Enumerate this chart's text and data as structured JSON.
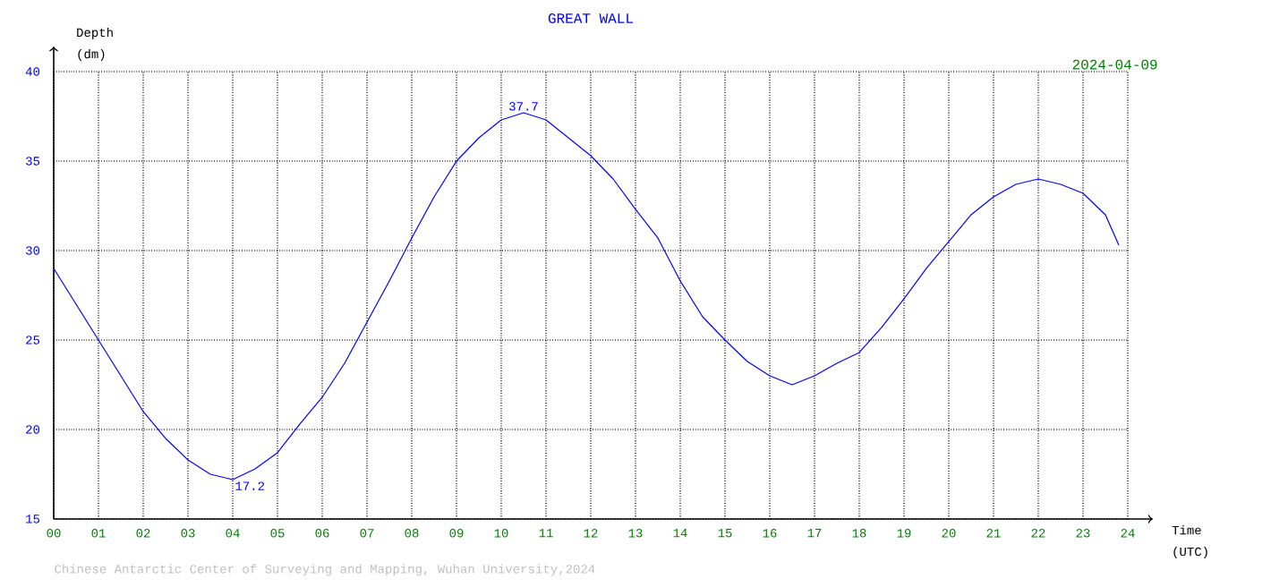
{
  "chart_data": {
    "type": "line",
    "title": "GREAT WALL",
    "xlabel": "Time (UTC)",
    "ylabel": "Depth (dm)",
    "x": [
      0,
      0.5,
      1,
      1.5,
      2,
      2.5,
      3,
      3.5,
      4,
      4.5,
      5,
      5.5,
      6,
      6.5,
      7,
      7.5,
      8,
      8.5,
      9,
      9.5,
      10,
      10.5,
      11,
      11.5,
      12,
      12.5,
      13,
      13.5,
      14,
      14.5,
      15,
      15.5,
      16,
      16.5,
      17,
      17.5,
      18,
      18.5,
      19,
      19.5,
      20,
      20.5,
      21,
      21.5,
      22,
      22.5,
      23,
      23.5,
      23.8
    ],
    "series": [
      {
        "color": "#0000ff",
        "values": [
          29.0,
          27.0,
          25.0,
          23.0,
          21.0,
          19.5,
          18.3,
          17.5,
          17.2,
          17.8,
          18.7,
          20.3,
          21.8,
          23.7,
          26.0,
          28.3,
          30.7,
          33.0,
          35.0,
          36.3,
          37.3,
          37.7,
          37.3,
          36.3,
          35.3,
          34.0,
          32.3,
          30.7,
          28.3,
          26.3,
          25.0,
          23.8,
          23.0,
          22.5,
          23.0,
          23.7,
          24.3,
          25.7,
          27.3,
          29.0,
          30.5,
          32.0,
          33.0,
          33.7,
          34.0,
          33.7,
          33.2,
          32.0,
          30.3
        ]
      }
    ],
    "xlim": [
      0,
      24
    ],
    "ylim": [
      15,
      40
    ],
    "xticks": [
      {
        "value": 0,
        "label": "00"
      },
      {
        "value": 1,
        "label": "01"
      },
      {
        "value": 2,
        "label": "02"
      },
      {
        "value": 3,
        "label": "03"
      },
      {
        "value": 4,
        "label": "04"
      },
      {
        "value": 5,
        "label": "05"
      },
      {
        "value": 6,
        "label": "06"
      },
      {
        "value": 7,
        "label": "07"
      },
      {
        "value": 8,
        "label": "08"
      },
      {
        "value": 9,
        "label": "09"
      },
      10,
      11,
      12,
      13,
      14,
      15,
      16,
      17,
      18,
      19,
      20,
      21,
      22,
      23,
      24
    ],
    "yticks": [
      15,
      20,
      25,
      30,
      35,
      40
    ],
    "grid": true,
    "marker": "none",
    "line_style": "solid",
    "annotations": [
      "2024-04-09",
      "Chinese Antarctic Center of Surveying and Mapping, Wuhan University,2024",
      {
        "text": "37.7",
        "x": 10.5,
        "y": 37.7
      },
      {
        "text": "17.2",
        "x": 4,
        "y": 17.2
      }
    ]
  }
}
